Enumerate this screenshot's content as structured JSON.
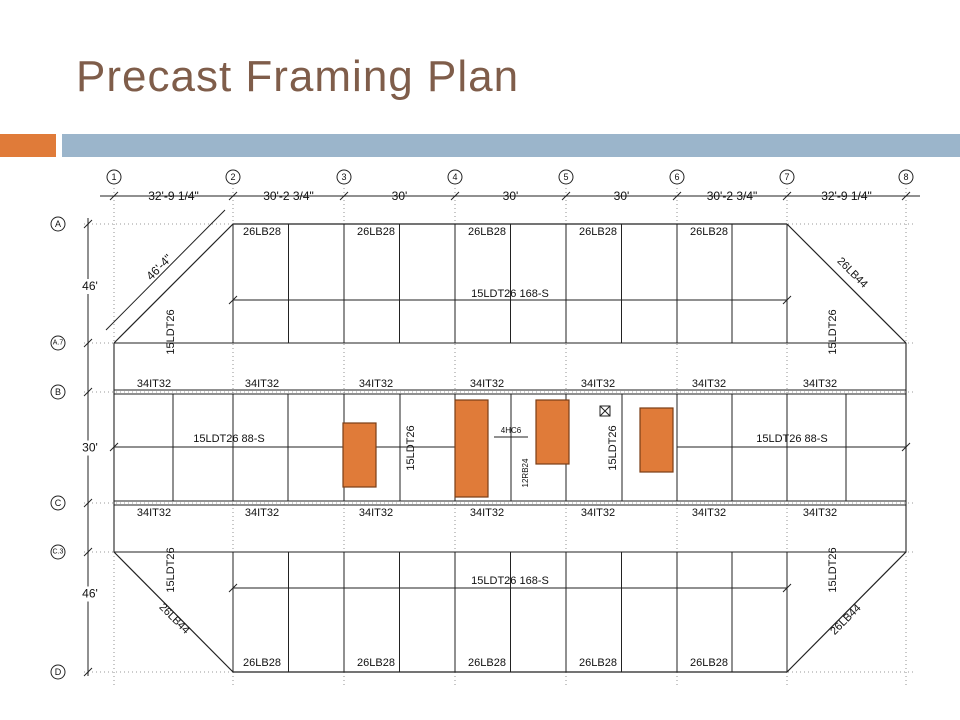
{
  "slide": {
    "title": "Precast Framing Plan",
    "colors": {
      "title": "#7f5d4a",
      "accent_orange": "#e07b39",
      "accent_blue": "#9bb5cb",
      "opening_fill": "#e07b39",
      "opening_stroke": "#7a3d16"
    }
  },
  "plan": {
    "column_grid_labels": [
      "1",
      "2",
      "3",
      "4",
      "5",
      "6",
      "7",
      "8"
    ],
    "row_grid_labels": [
      "A",
      "A.7",
      "B",
      "C",
      "C.3",
      "D"
    ],
    "column_dimensions": [
      "32'-9 1/4\"",
      "30'-2 3/4\"",
      "30'",
      "30'",
      "30'",
      "30'-2 3/4\"",
      "32'-9 1/4\""
    ],
    "row_dimensions": [
      "46'",
      "30'",
      "46'"
    ],
    "diagonal_dimension": "46'-4\"",
    "top_beam_labels": [
      "26LB28",
      "26LB28",
      "26LB28",
      "26LB28",
      "26LB28"
    ],
    "bottom_beam_labels": [
      "26LB28",
      "26LB28",
      "26LB28",
      "26LB28",
      "26LB28"
    ],
    "inverted_tee_row_b": [
      "34IT32",
      "34IT32",
      "34IT32",
      "34IT32",
      "34IT32",
      "34IT32",
      "34IT32"
    ],
    "inverted_tee_row_c": [
      "34IT32",
      "34IT32",
      "34IT32",
      "34IT32",
      "34IT32",
      "34IT32",
      "34IT32"
    ],
    "upper_double_tee_span": "15LDT26 168-S",
    "lower_double_tee_span": "15LDT26 168-S",
    "middle_left_span": "15LDT26 88-S",
    "middle_right_span": "15LDT26 88-S",
    "diagonal_beam_ne": "26LB44",
    "diagonal_beam_se": "26LB44",
    "diagonal_beam_sw": "26LB44",
    "vertical_tee_upper_left": "15LDT26",
    "vertical_tee_upper_right": "15LDT26",
    "vertical_tee_lower_left": "15LDT26",
    "vertical_tee_lower_right": "15LDT26",
    "vertical_tee_middle_left": "15LDT26",
    "vertical_tee_middle_right": "15LDT26",
    "hollow_core_label": "4HC6",
    "rectangular_beam_label": "12RB24"
  }
}
